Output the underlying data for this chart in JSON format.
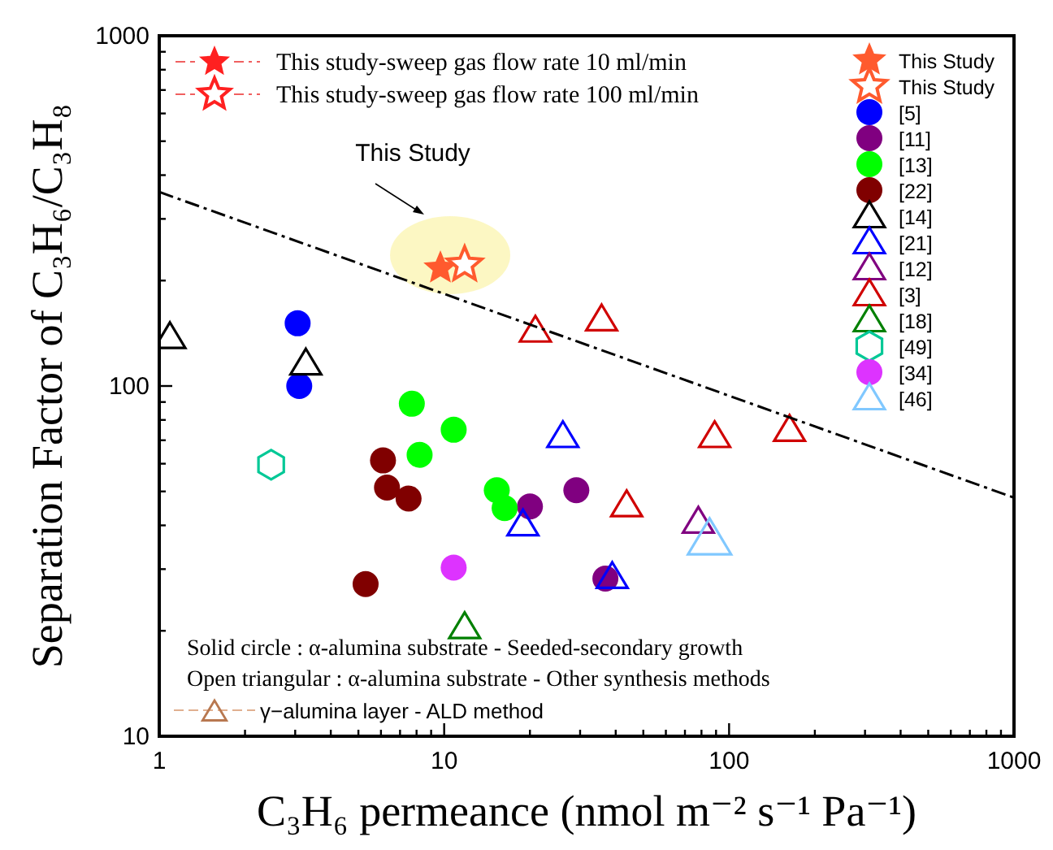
{
  "chart_data": {
    "type": "scatter",
    "xlabel": "C₃H₆ permeance (nmol m⁻² s⁻¹ Pa⁻¹)",
    "ylabel": "Separation Factor of C₃H₆/C₃H₈",
    "log": "xy",
    "xlim": [
      1,
      1000
    ],
    "ylim": [
      10,
      1000
    ],
    "xticks": [
      1,
      {
        "value": 2,
        "label": null
      },
      {
        "value": 3,
        "label": null
      },
      {
        "value": 4,
        "label": null
      },
      {
        "value": 5,
        "label": null
      },
      {
        "value": 6,
        "label": null
      },
      {
        "value": 7,
        "label": null
      },
      {
        "value": 8,
        "label": null
      },
      {
        "value": 9,
        "label": null
      },
      10,
      {
        "value": 20,
        "label": null
      },
      {
        "value": 30,
        "label": null
      },
      {
        "value": 40,
        "label": null
      },
      {
        "value": 50,
        "label": null
      },
      {
        "value": 60,
        "label": null
      },
      {
        "value": 70,
        "label": null
      },
      {
        "value": 80,
        "label": null
      },
      {
        "value": 90,
        "label": null
      },
      100,
      {
        "value": 200,
        "label": null
      },
      {
        "value": 300,
        "label": null
      },
      {
        "value": 400,
        "label": null
      },
      {
        "value": 500,
        "label": null
      },
      {
        "value": 600,
        "label": null
      },
      {
        "value": 700,
        "label": null
      },
      {
        "value": 800,
        "label": null
      },
      {
        "value": 900,
        "label": null
      },
      1000
    ],
    "yticks": [
      10,
      {
        "value": 20,
        "label": null
      },
      {
        "value": 30,
        "label": null
      },
      {
        "value": 40,
        "label": null
      },
      {
        "value": 50,
        "label": null
      },
      {
        "value": 60,
        "label": null
      },
      {
        "value": 70,
        "label": null
      },
      {
        "value": 80,
        "label": null
      },
      {
        "value": 90,
        "label": null
      },
      100,
      {
        "value": 200,
        "label": null
      },
      {
        "value": 300,
        "label": null
      },
      {
        "value": 400,
        "label": null
      },
      {
        "value": 500,
        "label": null
      },
      {
        "value": 600,
        "label": null
      },
      {
        "value": 700,
        "label": null
      },
      {
        "value": 800,
        "label": null
      },
      {
        "value": 900,
        "label": null
      },
      1000
    ],
    "grid": false,
    "legend": "top right",
    "series": [
      {
        "name": "This Study",
        "color": "#ff5a2e",
        "marker": "star",
        "x": [
          9.7
        ],
        "values": [
          217
        ]
      },
      {
        "name": "This Study",
        "color": "#ff5a2e",
        "marker": "star-open",
        "x": [
          11.8
        ],
        "values": [
          222
        ]
      },
      {
        "name": "[5]",
        "color": "#0000ff",
        "marker": "circle",
        "x": [
          3.06,
          3.1
        ],
        "values": [
          151,
          100
        ]
      },
      {
        "name": "[11]",
        "color": "#800080",
        "marker": "circle",
        "x": [
          20,
          29.1,
          36.8
        ],
        "values": [
          45.3,
          50.4,
          28.2
        ]
      },
      {
        "name": "[13]",
        "color": "#00ff00",
        "marker": "circle",
        "x": [
          7.7,
          10.8,
          8.2,
          15.3,
          16.3
        ],
        "values": [
          89,
          75,
          63.6,
          50.4,
          44.8
        ]
      },
      {
        "name": "[22]",
        "color": "#800000",
        "marker": "circle",
        "x": [
          6.1,
          6.3,
          7.5,
          5.3
        ],
        "values": [
          61.3,
          51.3,
          47.7,
          27.2
        ]
      },
      {
        "name": "[14]",
        "color": "#000000",
        "marker": "triangle-open",
        "x": [
          1.09,
          3.27
        ],
        "values": [
          138,
          116
        ]
      },
      {
        "name": "[21]",
        "color": "#0000ff",
        "marker": "triangle-open",
        "x": [
          18.9,
          26.1,
          38.9
        ],
        "values": [
          40.3,
          72,
          28.5
        ]
      },
      {
        "name": "[12]",
        "color": "#800080",
        "marker": "triangle-open",
        "x": [
          78
        ],
        "values": [
          41
        ]
      },
      {
        "name": "[3]",
        "color": "#d00000",
        "marker": "triangle-open",
        "x": [
          20.9,
          35.7,
          43.7,
          89,
          163
        ],
        "values": [
          144,
          155,
          45.7,
          72,
          75
        ]
      },
      {
        "name": "[18]",
        "color": "#008000",
        "marker": "triangle-open",
        "x": [
          11.8
        ],
        "values": [
          20.5
        ]
      },
      {
        "name": "[49]",
        "color": "#00c896",
        "x": [
          2.47
        ],
        "values": [
          59.6
        ]
      },
      {
        "name": "[34]",
        "color": "#dd33ff",
        "marker": "circle",
        "x": [
          10.8
        ],
        "values": [
          30.3
        ]
      },
      {
        "name": "[46]",
        "color": "#80c8ff",
        "marker": "triangle-open",
        "x": [
          85.4
        ],
        "values": [
          36.6
        ]
      },
      {
        "type": "line",
        "color": "#000000",
        "line_style": "dashed",
        "marker": "none",
        "x": [
          1,
          1000
        ],
        "values": [
          358,
          48
        ]
      }
    ],
    "annotations": [
      "This Study",
      "This study-sweep gas flow rate 10 ml/min",
      "This study-sweep gas flow rate 100 ml/min",
      "Solid circle : α-alumina substrate - Seeded-secondary growth",
      "Open triangular : α-alumina substrate - Other synthesis methods",
      "γ−alumina layer - ALD method"
    ]
  }
}
